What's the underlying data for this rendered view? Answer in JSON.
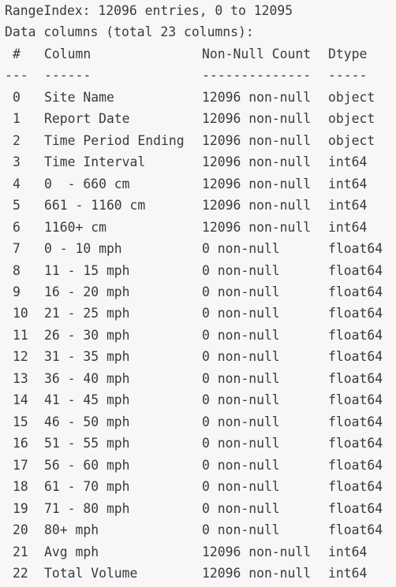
{
  "info_lines": [
    "RangeIndex: 12096 entries, 0 to 12095",
    "Data columns (total 23 columns):"
  ],
  "header": [
    "#",
    "Column",
    "Non-Null Count",
    "Dtype"
  ],
  "separator": [
    "---",
    "------",
    "--------------",
    "-----"
  ],
  "rows": [
    [
      "0",
      "Site Name",
      "12096 non-null",
      "object"
    ],
    [
      "1",
      "Report Date",
      "12096 non-null",
      "object"
    ],
    [
      "2",
      "Time Period Ending",
      "12096 non-null",
      "object"
    ],
    [
      "3",
      "Time Interval",
      "12096 non-null",
      "int64"
    ],
    [
      "4",
      "0  - 660 cm",
      "12096 non-null",
      "int64"
    ],
    [
      "5",
      "661 - 1160 cm",
      "12096 non-null",
      "int64"
    ],
    [
      "6",
      "1160+ cm",
      "12096 non-null",
      "int64"
    ],
    [
      "7",
      "0 - 10 mph",
      "0 non-null",
      "float64"
    ],
    [
      "8",
      "11 - 15 mph",
      "0 non-null",
      "float64"
    ],
    [
      "9",
      "16 - 20 mph",
      "0 non-null",
      "float64"
    ],
    [
      "10",
      "21 - 25 mph",
      "0 non-null",
      "float64"
    ],
    [
      "11",
      "26 - 30 mph",
      "0 non-null",
      "float64"
    ],
    [
      "12",
      "31 - 35 mph",
      "0 non-null",
      "float64"
    ],
    [
      "13",
      "36 - 40 mph",
      "0 non-null",
      "float64"
    ],
    [
      "14",
      "41 - 45 mph",
      "0 non-null",
      "float64"
    ],
    [
      "15",
      "46 - 50 mph",
      "0 non-null",
      "float64"
    ],
    [
      "16",
      "51 - 55 mph",
      "0 non-null",
      "float64"
    ],
    [
      "17",
      "56 - 60 mph",
      "0 non-null",
      "float64"
    ],
    [
      "18",
      "61 - 70 mph",
      "0 non-null",
      "float64"
    ],
    [
      "19",
      "71 - 80 mph",
      "0 non-null",
      "float64"
    ],
    [
      "20",
      "80+ mph",
      "0 non-null",
      "float64"
    ],
    [
      "21",
      "Avg mph",
      "12096 non-null",
      "int64"
    ],
    [
      "22",
      "Total Volume",
      "12096 non-null",
      "int64"
    ]
  ]
}
